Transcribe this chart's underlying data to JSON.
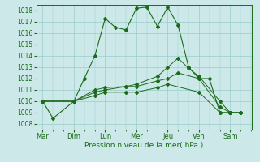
{
  "bg_color": "#cce8e8",
  "grid_color": "#99cccc",
  "line_color": "#1a6b1a",
  "xlabel": "Pression niveau de la mer( hPa )",
  "xtick_labels": [
    "Mar",
    "Dim",
    "Lun",
    "Mer",
    "Jeu",
    "Ven",
    "Sam"
  ],
  "xtick_pos": [
    0,
    1,
    2,
    3,
    4,
    5,
    6
  ],
  "ylim": [
    1007.5,
    1018.5
  ],
  "yticks": [
    1008,
    1009,
    1010,
    1011,
    1012,
    1013,
    1014,
    1015,
    1016,
    1017,
    1018
  ],
  "line1_x": [
    0,
    0.33,
    1.0,
    1.33,
    1.67,
    2.0,
    2.33,
    2.67,
    3.0,
    3.33,
    3.67,
    4.0,
    4.33,
    4.67,
    5.0,
    5.33,
    5.67,
    6.0,
    6.33
  ],
  "line1_y": [
    1010,
    1008.5,
    1010,
    1012,
    1014,
    1017.3,
    1016.5,
    1016.3,
    1018.2,
    1018.3,
    1016.6,
    1018.3,
    1016.7,
    1013,
    1012,
    1012,
    1009.0,
    1009,
    1009
  ],
  "line2_x": [
    0,
    1.0,
    1.67,
    2.0,
    2.67,
    3.0,
    3.67,
    4.0,
    4.33,
    4.67,
    5.0,
    5.67,
    6.0,
    6.33
  ],
  "line2_y": [
    1010,
    1010,
    1011,
    1011.2,
    1011.3,
    1011.5,
    1012.2,
    1013.0,
    1013.8,
    1012.9,
    1012.2,
    1010.0,
    1009,
    1009
  ],
  "line3_x": [
    0,
    1.0,
    1.67,
    2.0,
    2.67,
    3.0,
    3.67,
    4.0,
    4.33,
    5.0,
    5.67,
    6.0,
    6.33
  ],
  "line3_y": [
    1010,
    1010,
    1010.8,
    1011.0,
    1011.3,
    1011.3,
    1011.8,
    1012.0,
    1012.5,
    1012.0,
    1009.5,
    1009,
    1009
  ],
  "line4_x": [
    0,
    1.0,
    1.67,
    2.0,
    2.67,
    3.0,
    3.67,
    4.0,
    5.0,
    5.67,
    6.0,
    6.33
  ],
  "line4_y": [
    1010,
    1010,
    1010.5,
    1010.8,
    1010.8,
    1010.8,
    1011.2,
    1011.5,
    1010.8,
    1009.0,
    1009,
    1009
  ]
}
